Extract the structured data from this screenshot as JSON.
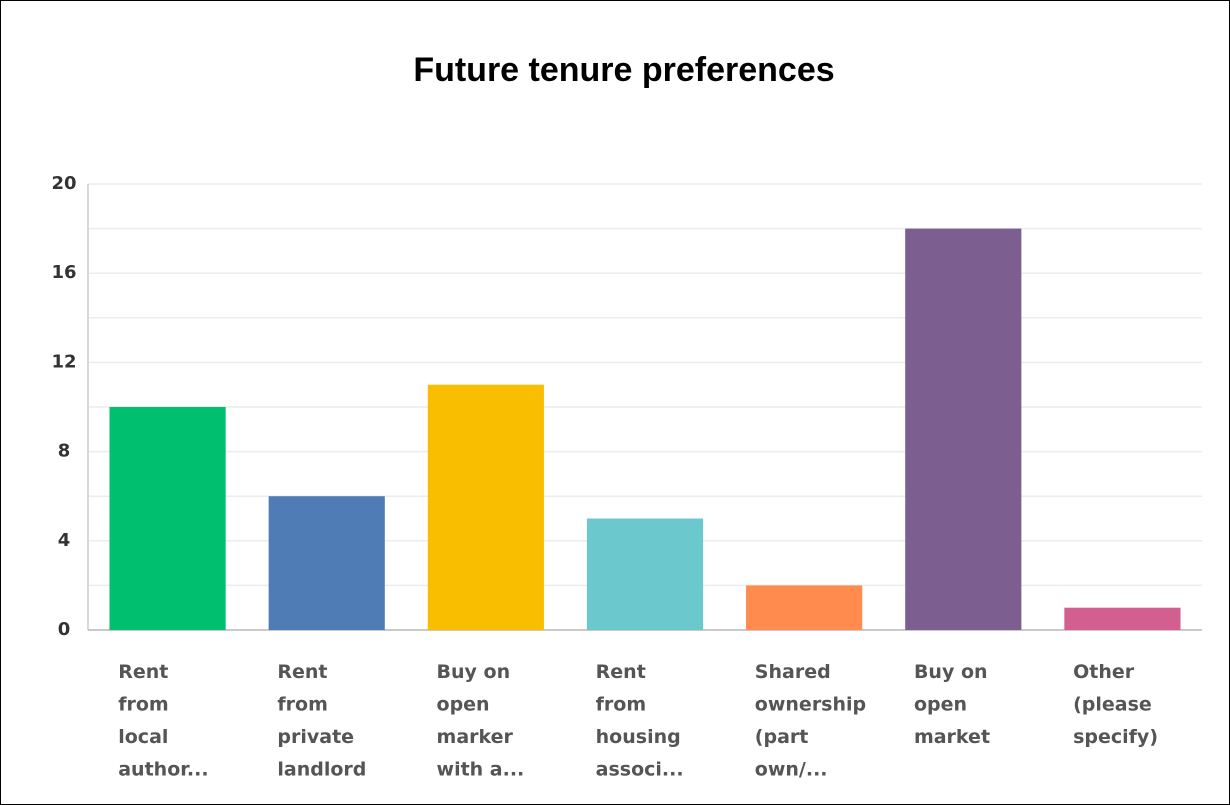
{
  "chart_data": {
    "type": "bar",
    "title": "Future tenure preferences",
    "categories": [
      "Rent\nfrom\nlocal\nauthor...",
      "Rent\nfrom\nprivate\nlandlord",
      "Buy on\nopen\nmarker\nwith a...",
      "Rent\nfrom\nhousing\nassoci...",
      "Shared\nownership\n(part\nown/...",
      "Buy on\nopen\nmarket",
      "Other\n(please\nspecify)"
    ],
    "values": [
      10,
      6,
      11,
      5,
      2,
      18,
      1
    ],
    "colors": [
      "#00bf6f",
      "#507cb6",
      "#f9be00",
      "#6bc8cd",
      "#ff8b4f",
      "#7d5e90",
      "#d25f90"
    ],
    "ylim": [
      0,
      20
    ],
    "yticks": [
      0,
      4,
      8,
      12,
      16,
      20
    ],
    "minor_yticks": [
      2,
      6,
      10,
      14,
      18
    ],
    "grid": true
  }
}
